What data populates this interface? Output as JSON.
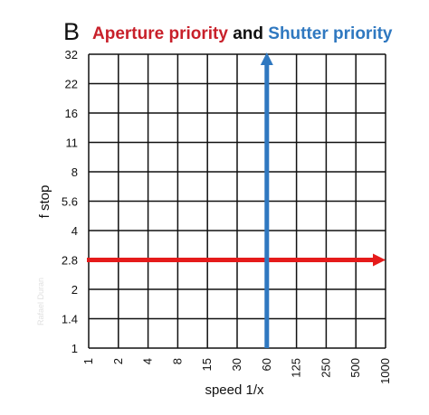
{
  "panel_label": "B",
  "title": {
    "part1": "Aperture priority",
    "part2": "and",
    "part3": "Shutter priority",
    "color1": "#c8202a",
    "color2": "#111111",
    "color3": "#2f78c0"
  },
  "credit": "Rafael Duran",
  "chart_data": {
    "type": "line",
    "xlabel": "speed 1/x",
    "ylabel": "f stop",
    "x_ticks": [
      "1",
      "2",
      "4",
      "8",
      "15",
      "30",
      "60",
      "125",
      "250",
      "500",
      "1000"
    ],
    "y_ticks": [
      "1",
      "1.4",
      "2",
      "2.8",
      "4",
      "5.6",
      "8",
      "11",
      "16",
      "22",
      "32"
    ],
    "grid": true,
    "series": [
      {
        "color": "#e51b1b",
        "arrow": "right",
        "points": [
          {
            "x": "1",
            "y": "2.8"
          },
          {
            "x": "1000",
            "y": "2.8"
          }
        ]
      },
      {
        "color": "#2f78c0",
        "arrow": "up",
        "points": [
          {
            "x": "60",
            "y": "1"
          },
          {
            "x": "60",
            "y": "32"
          }
        ]
      }
    ]
  }
}
